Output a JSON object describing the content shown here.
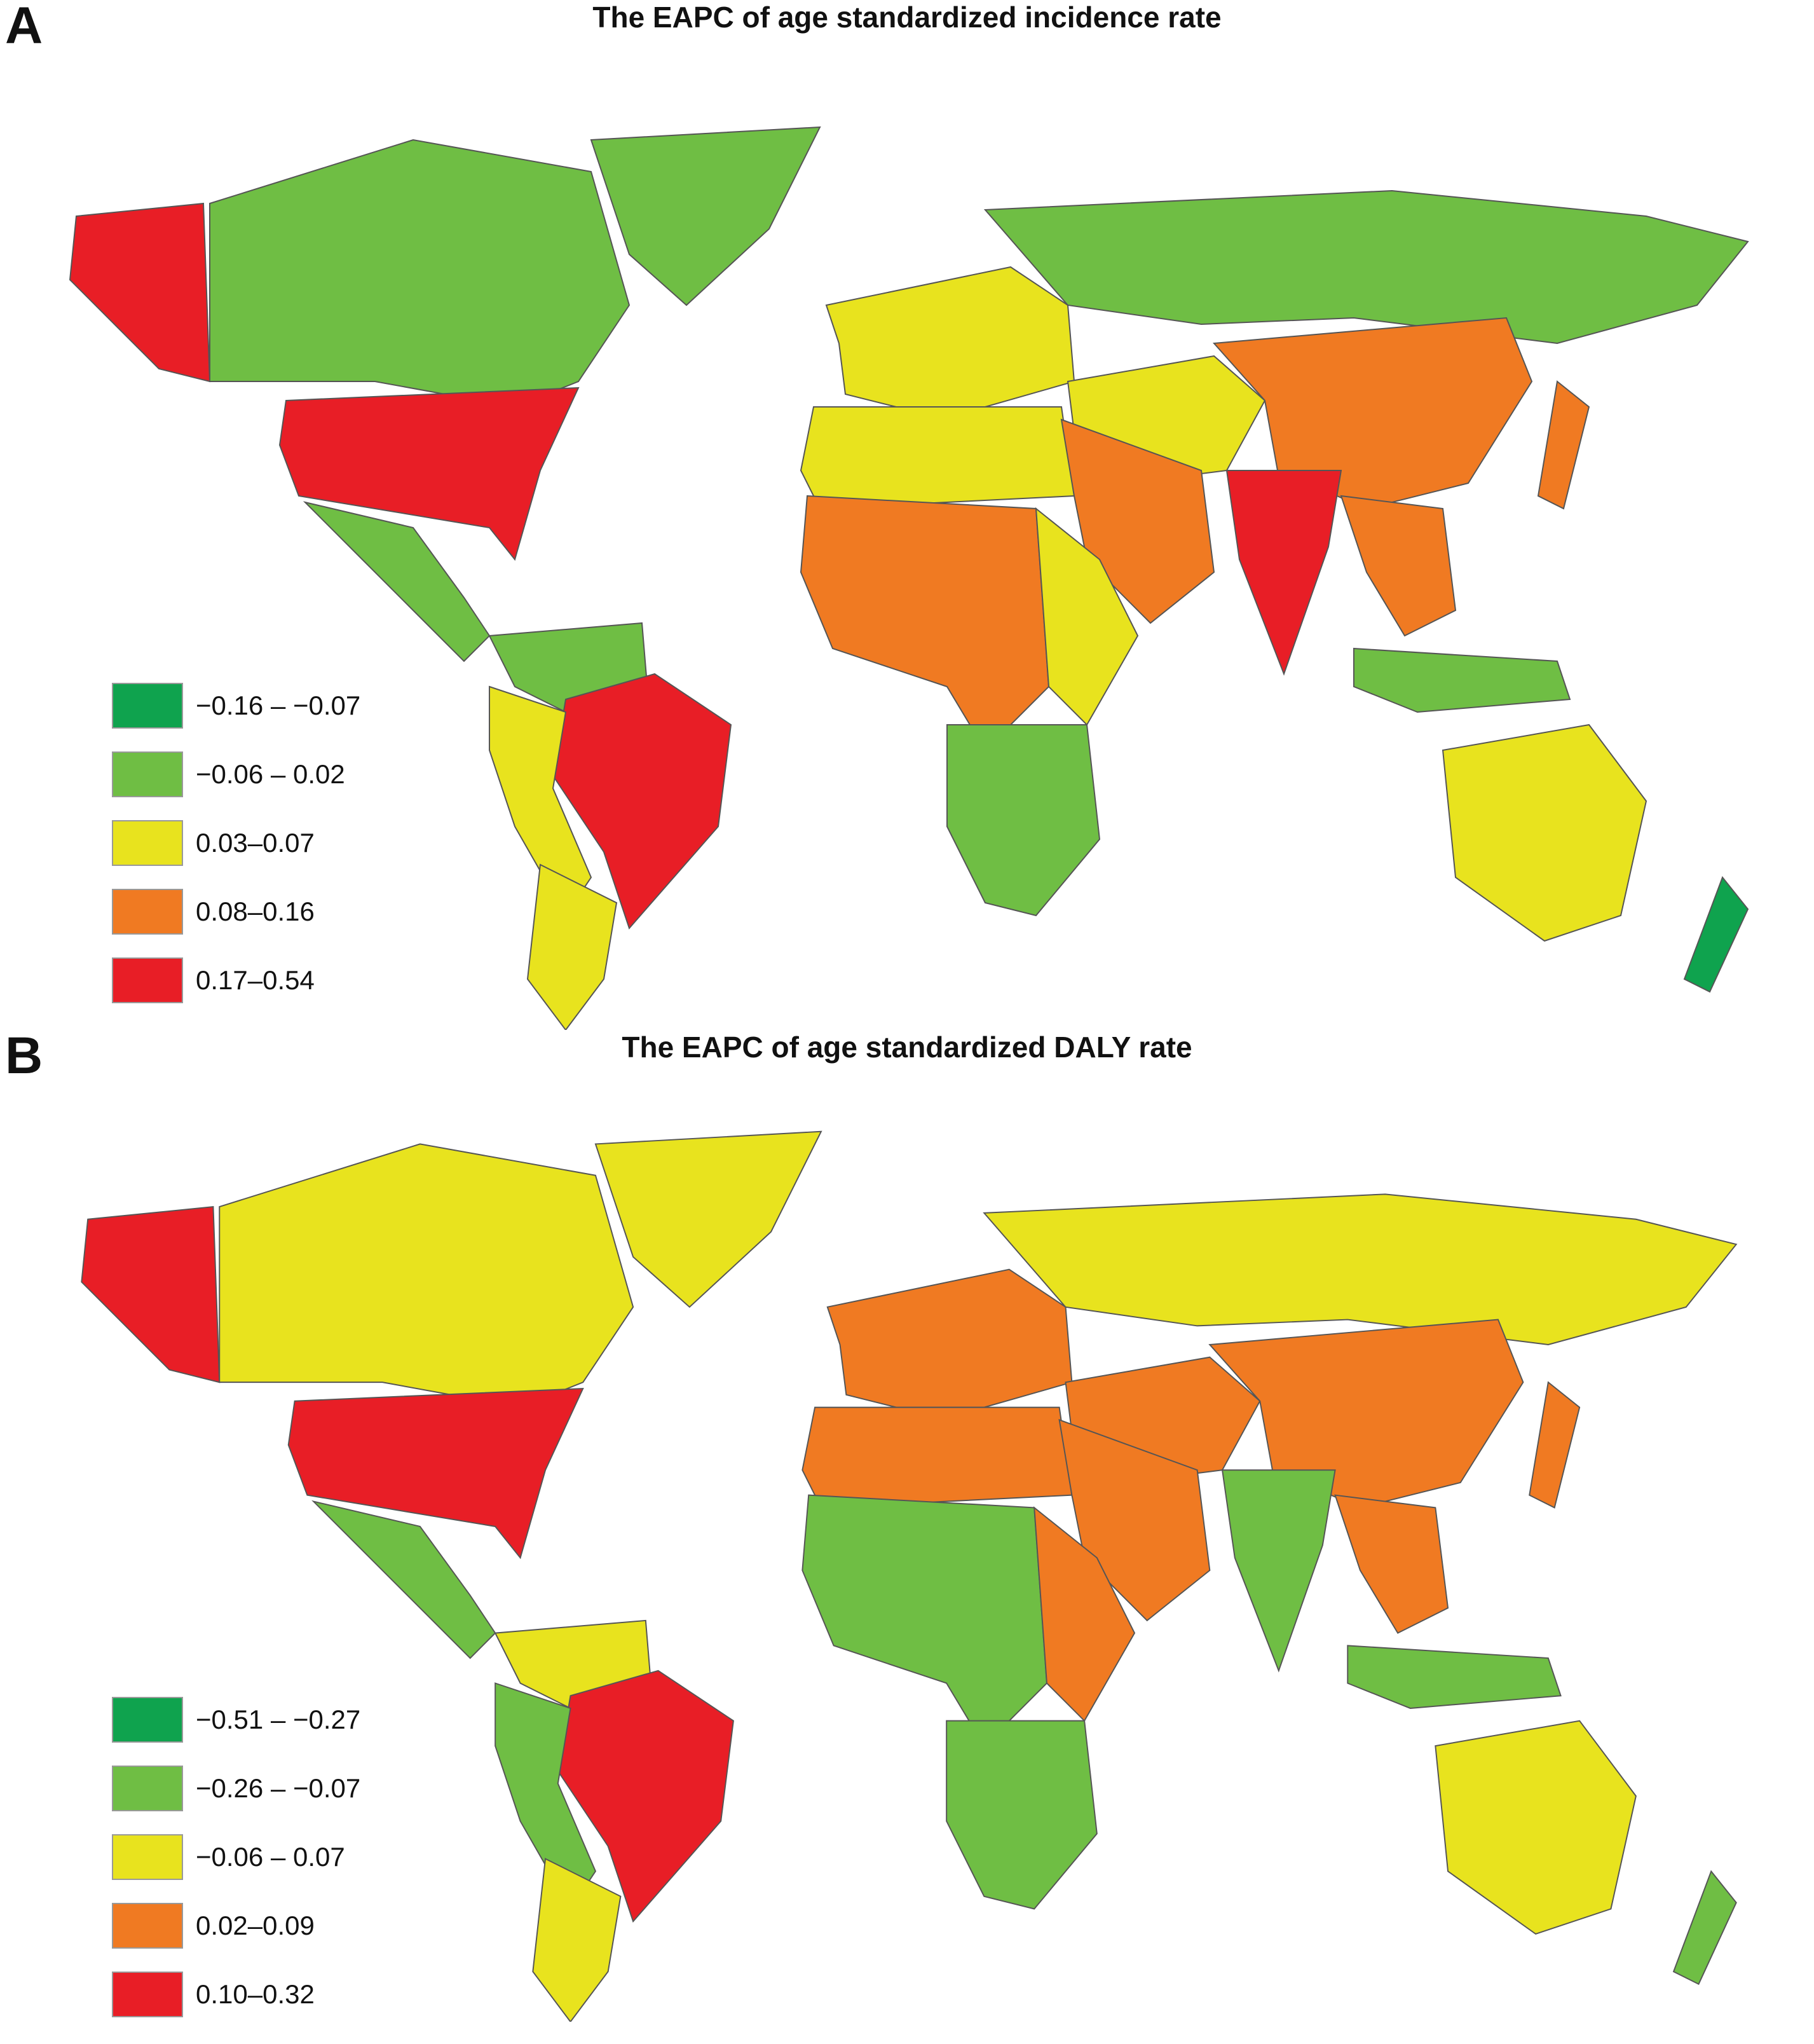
{
  "chart_data": [
    {
      "type": "choropleth",
      "panel": "A",
      "title": "The EAPC of age standardized incidence rate",
      "legend": [
        {
          "label": "−0.16 – −0.07",
          "color": "#0fa34e"
        },
        {
          "label": "−0.06 – 0.02",
          "color": "#6fbe44"
        },
        {
          "label": "0.03–0.07",
          "color": "#e8e31e"
        },
        {
          "label": "0.08–0.16",
          "color": "#f07a22"
        },
        {
          "label": "0.17–0.54",
          "color": "#e81e26"
        }
      ],
      "regions": [
        {
          "name": "Alaska",
          "cls": 4
        },
        {
          "name": "Canada",
          "cls": 1
        },
        {
          "name": "Greenland",
          "cls": 1
        },
        {
          "name": "USA",
          "cls": 4
        },
        {
          "name": "Mexico & Central America",
          "cls": 1
        },
        {
          "name": "Northern South America",
          "cls": 1
        },
        {
          "name": "Brazil",
          "cls": 4
        },
        {
          "name": "Andes",
          "cls": 2
        },
        {
          "name": "Southern Cone",
          "cls": 2
        },
        {
          "name": "Europe",
          "cls": 2
        },
        {
          "name": "Russia",
          "cls": 1
        },
        {
          "name": "Central Asia",
          "cls": 2
        },
        {
          "name": "China",
          "cls": 3
        },
        {
          "name": "India",
          "cls": 4
        },
        {
          "name": "North Africa",
          "cls": 2
        },
        {
          "name": "Middle East",
          "cls": 3
        },
        {
          "name": "West & Central Africa",
          "cls": 3
        },
        {
          "name": "East Africa",
          "cls": 2
        },
        {
          "name": "Southern Africa",
          "cls": 1
        },
        {
          "name": "Southeast Asia",
          "cls": 3
        },
        {
          "name": "Indonesia",
          "cls": 1
        },
        {
          "name": "Australia",
          "cls": 2
        },
        {
          "name": "New Zealand",
          "cls": 0
        },
        {
          "name": "Japan",
          "cls": 3
        }
      ]
    },
    {
      "type": "choropleth",
      "panel": "B",
      "title": "The EAPC of age standardized DALY rate",
      "legend": [
        {
          "label": "−0.51 – −0.27",
          "color": "#0fa34e"
        },
        {
          "label": "−0.26 – −0.07",
          "color": "#6fbe44"
        },
        {
          "label": "−0.06 – 0.07",
          "color": "#e8e31e"
        },
        {
          "label": "0.02–0.09",
          "color": "#f07a22"
        },
        {
          "label": "0.10–0.32",
          "color": "#e81e26"
        }
      ],
      "regions": [
        {
          "name": "Alaska",
          "cls": 4
        },
        {
          "name": "Canada",
          "cls": 2
        },
        {
          "name": "Greenland",
          "cls": 2
        },
        {
          "name": "USA",
          "cls": 4
        },
        {
          "name": "Mexico & Central America",
          "cls": 1
        },
        {
          "name": "Northern South America",
          "cls": 2
        },
        {
          "name": "Brazil",
          "cls": 4
        },
        {
          "name": "Andes",
          "cls": 1
        },
        {
          "name": "Southern Cone",
          "cls": 2
        },
        {
          "name": "Europe",
          "cls": 3
        },
        {
          "name": "Russia",
          "cls": 2
        },
        {
          "name": "Central Asia",
          "cls": 3
        },
        {
          "name": "China",
          "cls": 3
        },
        {
          "name": "India",
          "cls": 1
        },
        {
          "name": "North Africa",
          "cls": 3
        },
        {
          "name": "Middle East",
          "cls": 3
        },
        {
          "name": "West & Central Africa",
          "cls": 1
        },
        {
          "name": "East Africa",
          "cls": 3
        },
        {
          "name": "Southern Africa",
          "cls": 1
        },
        {
          "name": "Southeast Asia",
          "cls": 3
        },
        {
          "name": "Indonesia",
          "cls": 1
        },
        {
          "name": "Australia",
          "cls": 2
        },
        {
          "name": "New Zealand",
          "cls": 1
        },
        {
          "name": "Japan",
          "cls": 3
        }
      ]
    }
  ],
  "panels": [
    {
      "letter": "A",
      "title": "The EAPC of age standardized incidence rate"
    },
    {
      "letter": "B",
      "title": "The EAPC of age standardized DALY rate"
    }
  ]
}
